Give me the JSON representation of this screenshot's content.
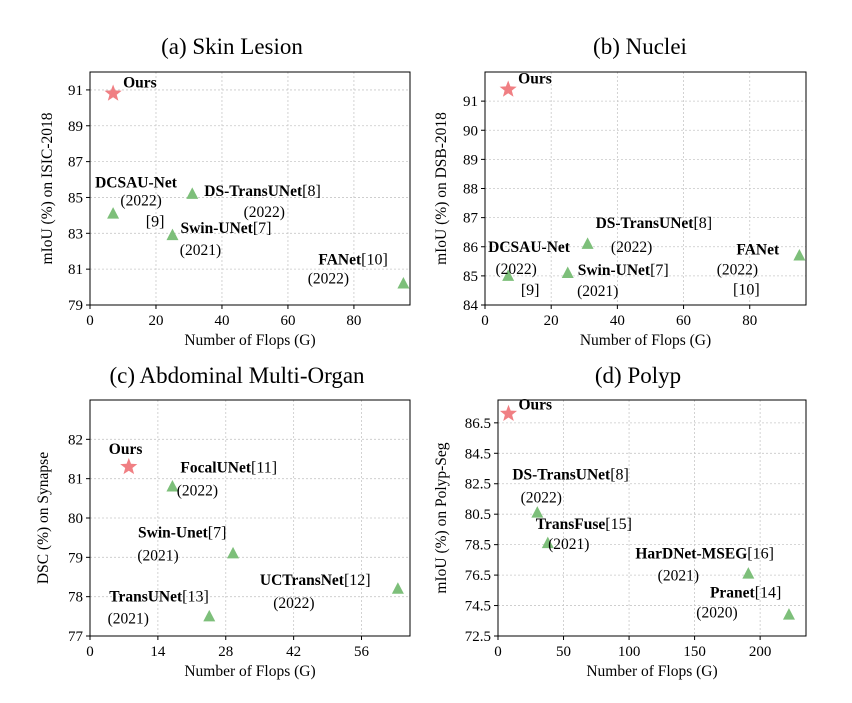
{
  "colors": {
    "ours": "#f07f83",
    "others": "#7dbf7a",
    "grid": "#c8c8c8"
  },
  "chart_data": [
    {
      "type": "scatter",
      "title": "(a) Skin Lesion",
      "xlabel": "Number of Flops (G)",
      "ylabel": "mIoU (%) on ISIC-2018",
      "xlim": [
        0,
        97
      ],
      "ylim": [
        79,
        92
      ],
      "xticks": [
        0,
        20,
        40,
        60,
        80
      ],
      "yticks": [
        79,
        81,
        83,
        85,
        87,
        89,
        91
      ],
      "points": [
        {
          "name": "Ours",
          "ref": "",
          "year": "",
          "x": 7,
          "y": 90.8,
          "marker": "star"
        },
        {
          "name": "DCSAU-Net",
          "ref": "[9]",
          "year": "(2022)",
          "x": 7,
          "y": 84.1,
          "marker": "triangle"
        },
        {
          "name": "DS-TransUNet",
          "ref": "[8]",
          "year": "(2022)",
          "x": 31,
          "y": 85.2,
          "marker": "triangle"
        },
        {
          "name": "Swin-UNet",
          "ref": "[7]",
          "year": "(2021)",
          "x": 25,
          "y": 82.9,
          "marker": "triangle"
        },
        {
          "name": "FANet",
          "ref": "[10]",
          "year": "(2022)",
          "x": 95,
          "y": 80.2,
          "marker": "triangle"
        }
      ]
    },
    {
      "type": "scatter",
      "title": "(b) Nuclei",
      "xlabel": "Number of Flops (G)",
      "ylabel": "mIoU (%) on DSB-2018",
      "xlim": [
        0,
        97
      ],
      "ylim": [
        84,
        92
      ],
      "xticks": [
        0,
        20,
        40,
        60,
        80
      ],
      "yticks": [
        84,
        85,
        86,
        87,
        88,
        89,
        90,
        91
      ],
      "points": [
        {
          "name": "Ours",
          "ref": "",
          "year": "",
          "x": 7,
          "y": 91.4,
          "marker": "star"
        },
        {
          "name": "DCSAU-Net",
          "ref": "[9]",
          "year": "(2022)",
          "x": 7,
          "y": 85.0,
          "marker": "triangle"
        },
        {
          "name": "DS-TransUNet",
          "ref": "[8]",
          "year": "(2022)",
          "x": 31,
          "y": 86.1,
          "marker": "triangle"
        },
        {
          "name": "Swin-UNet",
          "ref": "[7]",
          "year": "(2021)",
          "x": 25,
          "y": 85.1,
          "marker": "triangle"
        },
        {
          "name": "FANet",
          "ref": "[10]",
          "year": "(2022)",
          "x": 95,
          "y": 85.7,
          "marker": "triangle"
        }
      ]
    },
    {
      "type": "scatter",
      "title": "(c) Abdominal Multi-Organ",
      "xlabel": "Number of Flops (G)",
      "ylabel": "DSC (%) on Synapse",
      "xlim": [
        0,
        66
      ],
      "ylim": [
        77,
        83
      ],
      "xticks": [
        0,
        14,
        28,
        42,
        56
      ],
      "yticks": [
        77,
        78,
        79,
        80,
        81,
        82
      ],
      "points": [
        {
          "name": "Ours",
          "ref": "",
          "year": "",
          "x": 8,
          "y": 81.3,
          "marker": "star"
        },
        {
          "name": "FocalUNet",
          "ref": "[11]",
          "year": "(2022)",
          "x": 17,
          "y": 80.8,
          "marker": "triangle"
        },
        {
          "name": "Swin-Unet",
          "ref": "[7]",
          "year": "(2021)",
          "x": 29.5,
          "y": 79.1,
          "marker": "triangle"
        },
        {
          "name": "UCTransNet",
          "ref": "[12]",
          "year": "(2022)",
          "x": 63.5,
          "y": 78.2,
          "marker": "triangle"
        },
        {
          "name": "TransUNet",
          "ref": "[13]",
          "year": "(2021)",
          "x": 24.6,
          "y": 77.5,
          "marker": "triangle"
        }
      ]
    },
    {
      "type": "scatter",
      "title": "(d) Polyp",
      "xlabel": "Number of Flops (G)",
      "ylabel": "mIoU (%) on Polyp-Seg",
      "xlim": [
        0,
        235
      ],
      "ylim": [
        72.5,
        88
      ],
      "xticks": [
        0,
        50,
        100,
        150,
        200
      ],
      "yticks": [
        72.5,
        74.5,
        76.5,
        78.5,
        80.5,
        82.5,
        84.5,
        86.5
      ],
      "points": [
        {
          "name": "Ours",
          "ref": "",
          "year": "",
          "x": 8,
          "y": 87.1,
          "marker": "star"
        },
        {
          "name": "DS-TransUNet",
          "ref": "[8]",
          "year": "(2022)",
          "x": 30,
          "y": 80.6,
          "marker": "triangle"
        },
        {
          "name": "TransFuse",
          "ref": "[15]",
          "year": "(2021)",
          "x": 38,
          "y": 78.6,
          "marker": "triangle"
        },
        {
          "name": "HarDNet-MSEG",
          "ref": "[16]",
          "year": "(2021)",
          "x": 191,
          "y": 76.6,
          "marker": "triangle"
        },
        {
          "name": "Pranet",
          "ref": "[14]",
          "year": "(2020)",
          "x": 222,
          "y": 73.9,
          "marker": "triangle"
        }
      ]
    }
  ]
}
